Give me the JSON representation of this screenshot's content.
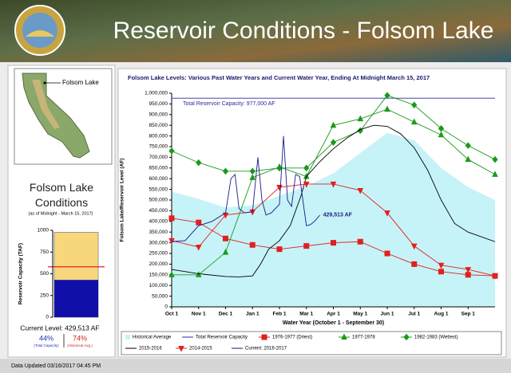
{
  "header": {
    "title": "Reservoir Conditions - Folsom Lake"
  },
  "map": {
    "label": "Folsom Lake"
  },
  "conditions": {
    "title": "Folsom Lake Conditions",
    "subtitle": "(as of Midnight - March 15, 2017)",
    "current_level": "Current Level: 429,513 AF",
    "pct_capacity": "44%",
    "pct_capacity_label": "(Total Capacity)",
    "pct_historical": "74%",
    "pct_historical_label": "(Historical Avg.)"
  },
  "footer": {
    "text": "Data Updated 03/16/2017 04:45 PM"
  },
  "chart_data": [
    {
      "type": "line",
      "title": "Folsom Lake Levels: Various Past Water Years and Current Water Year, Ending At Midnight March 15, 2017",
      "y_label": "Folsom Lake/Reservoir Level (AF)",
      "x_label": "Water Year (October 1 - September 30)",
      "xlim": [
        0,
        12
      ],
      "ylim": [
        0,
        1000000
      ],
      "xticks": [
        {
          "value": 0,
          "label": "Oct 1"
        },
        {
          "value": 1,
          "label": "Nov 1"
        },
        {
          "value": 2,
          "label": "Dec 1"
        },
        {
          "value": 3,
          "label": "Jan 1"
        },
        {
          "value": 4,
          "label": "Feb 1"
        },
        {
          "value": 5,
          "label": "Mar 1"
        },
        {
          "value": 6,
          "label": "Apr 1"
        },
        {
          "value": 7,
          "label": "May 1"
        },
        {
          "value": 8,
          "label": "Jun 1"
        },
        {
          "value": 9,
          "label": "Jul 1"
        },
        {
          "value": 10,
          "label": "Aug 1"
        },
        {
          "value": 11,
          "label": "Sep 1"
        }
      ],
      "yticks": [
        0,
        {
          "value": 50000,
          "label": "50,000"
        },
        {
          "value": 100000,
          "label": "100,000"
        },
        {
          "value": 150000,
          "label": "150,000"
        },
        {
          "value": 200000,
          "label": "200,000"
        },
        {
          "value": 250000,
          "label": "250,000"
        },
        {
          "value": 300000,
          "label": "300,000"
        },
        {
          "value": 350000,
          "label": "350,000"
        },
        {
          "value": 400000,
          "label": "400,000"
        },
        {
          "value": 450000,
          "label": "450,000"
        },
        {
          "value": 500000,
          "label": "500,000"
        },
        {
          "value": 550000,
          "label": "550,000"
        },
        {
          "value": 600000,
          "label": "600,000"
        },
        {
          "value": 650000,
          "label": "650,000"
        },
        {
          "value": 700000,
          "label": "700,000"
        },
        {
          "value": 750000,
          "label": "750,000"
        },
        {
          "value": 800000,
          "label": "800,000"
        },
        {
          "value": 850000,
          "label": "850,000"
        },
        {
          "value": 900000,
          "label": "900,000"
        },
        {
          "value": 950000,
          "label": "950,000"
        },
        {
          "value": 1000000,
          "label": "1,000,000"
        }
      ],
      "x": [
        0,
        1,
        2,
        3,
        4,
        5,
        6,
        7,
        8,
        9,
        10,
        11,
        12
      ],
      "series": [
        {
          "name": "Historical Average",
          "color": "#c6f3f7",
          "style": "area",
          "values": [
            540000,
            505000,
            465000,
            475000,
            520000,
            565000,
            625000,
            720000,
            815000,
            780000,
            650000,
            560000,
            500000
          ]
        },
        {
          "name": "Total Reservoir Capacity",
          "color": "#2a2aa0",
          "style": "line",
          "x": [
            0,
            12
          ],
          "values": [
            977000,
            977000
          ],
          "label": "Total Reservoir Capacity: 977,000 AF"
        },
        {
          "name": "1976-1977 (Driest)",
          "color": "#e02020",
          "style": "line",
          "marker": "square",
          "values": [
            415000,
            395000,
            320000,
            290000,
            270000,
            285000,
            300000,
            305000,
            250000,
            200000,
            165000,
            150000,
            145000
          ]
        },
        {
          "name": "1977-1978",
          "color": "#1a9a1a",
          "style": "line",
          "marker": "triangle",
          "values": [
            150000,
            150000,
            255000,
            605000,
            655000,
            610000,
            850000,
            880000,
            925000,
            865000,
            805000,
            690000,
            620000
          ]
        },
        {
          "name": "1982-1983 (Wettest)",
          "color": "#1a9a1a",
          "style": "line",
          "marker": "diamond",
          "values": [
            730000,
            675000,
            635000,
            635000,
            650000,
            650000,
            770000,
            825000,
            990000,
            945000,
            835000,
            755000,
            690000
          ]
        },
        {
          "name": "2015-2016",
          "color": "#000000",
          "style": "line",
          "x": [
            0,
            1,
            2,
            2.5,
            3,
            3.3,
            3.6,
            4,
            4.4,
            4.8,
            5,
            5.5,
            6,
            6.5,
            7,
            7.5,
            8,
            8.5,
            9,
            9.5,
            10,
            10.5,
            11,
            12
          ],
          "values": [
            175000,
            155000,
            142000,
            140000,
            145000,
            200000,
            270000,
            310000,
            380000,
            520000,
            610000,
            680000,
            740000,
            790000,
            830000,
            850000,
            845000,
            810000,
            745000,
            640000,
            500000,
            390000,
            350000,
            305000
          ]
        },
        {
          "name": "2014-2015",
          "color": "#e02020",
          "style": "line",
          "marker": "triangle-down",
          "values": [
            310000,
            280000,
            430000,
            445000,
            560000,
            575000,
            575000,
            545000,
            440000,
            285000,
            195000,
            175000,
            145000
          ]
        },
        {
          "name": "Current: 2016-2017",
          "color": "#1a1a8a",
          "style": "line",
          "x": [
            0,
            0.5,
            1,
            1.5,
            2,
            2.2,
            2.35,
            2.5,
            2.7,
            3,
            3.2,
            3.35,
            3.5,
            3.7,
            4,
            4.15,
            4.3,
            4.45,
            4.6,
            4.75,
            4.9,
            5.0,
            5.15,
            5.3,
            5.5
          ],
          "values": [
            305000,
            310000,
            380000,
            400000,
            440000,
            600000,
            620000,
            460000,
            440000,
            445000,
            700000,
            500000,
            430000,
            440000,
            480000,
            800000,
            500000,
            470000,
            620000,
            610000,
            470000,
            380000,
            385000,
            400000,
            429513
          ],
          "end_label": "429,513 AF"
        }
      ]
    },
    {
      "type": "gauge",
      "y_label": "Reservoir Capacity (TAF)",
      "ylim": [
        0,
        1000
      ],
      "yticks": [
        0,
        250,
        500,
        750,
        1000
      ],
      "capacity": 977,
      "current": 429.513,
      "historical_avg": 580,
      "colors": {
        "capacity": "#f8d77c",
        "current": "#1010a8",
        "historical_avg": "#e02020"
      }
    }
  ]
}
